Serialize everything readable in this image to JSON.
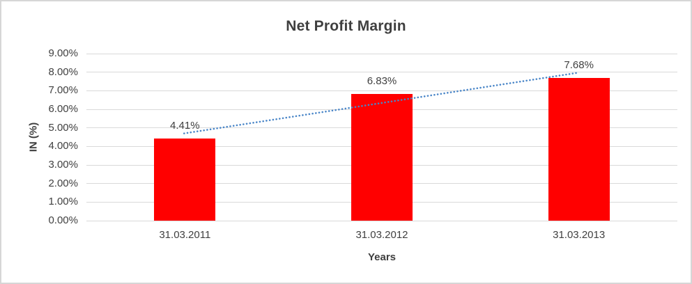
{
  "chart_data": {
    "type": "bar",
    "title": "Net Profit Margin",
    "categories": [
      "31.03.2011",
      "31.03.2012",
      "31.03.2013"
    ],
    "values": [
      4.41,
      6.83,
      7.68
    ],
    "data_labels": [
      "4.41%",
      "6.83%",
      "7.68%"
    ],
    "xlabel": "Years",
    "ylabel": "IN (%)",
    "ylim": [
      0,
      9
    ],
    "ytick_step": 1,
    "ytick_labels": [
      "0.00%",
      "1.00%",
      "2.00%",
      "3.00%",
      "4.00%",
      "5.00%",
      "6.00%",
      "7.00%",
      "8.00%",
      "9.00%"
    ],
    "grid": true,
    "legend_position": "none",
    "bar_color": "#ff0000",
    "trendline": {
      "type": "linear",
      "style": "dotted",
      "color": "#4a86c8"
    },
    "colors": {
      "gridline": "#d9d9d9",
      "tick_text": "#404040",
      "title_text": "#3f3f3f",
      "frame_border": "#d6d6d6",
      "background": "#ffffff"
    }
  }
}
